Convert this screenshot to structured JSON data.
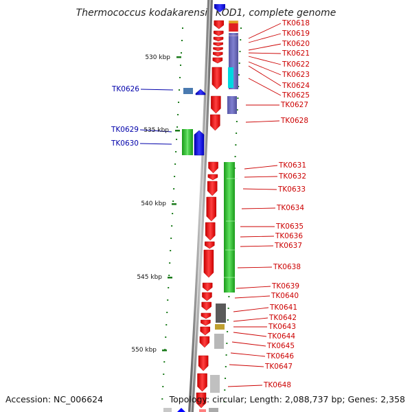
{
  "title": "Thermococcus kodakarensis KOD1, complete genome",
  "footer": {
    "accession": "Accession: NC_006624",
    "summary": "Topology: circular; Length: 2,088,737 bp; Genes: 2,358"
  },
  "colors": {
    "forward_gene": "#ff0000",
    "reverse_gene": "#0000ff",
    "forward_label": "#cc0000",
    "reverse_label": "#0000aa",
    "backbone": "#888888",
    "tick": "#1a7a1a"
  },
  "scale_labels": [
    "530 kbp",
    "535 kbp",
    "540 kbp",
    "545 kbp",
    "550 kbp"
  ],
  "forward_genes": [
    {
      "label": "TK0618"
    },
    {
      "label": "TK0619"
    },
    {
      "label": "TK0620"
    },
    {
      "label": "TK0621"
    },
    {
      "label": "TK0622"
    },
    {
      "label": "TK0623"
    },
    {
      "label": "TK0624"
    },
    {
      "label": "TK0625"
    },
    {
      "label": "TK0627"
    },
    {
      "label": "TK0628"
    },
    {
      "label": "TK0631"
    },
    {
      "label": "TK0632"
    },
    {
      "label": "TK0633"
    },
    {
      "label": "TK0634"
    },
    {
      "label": "TK0635"
    },
    {
      "label": "TK0636"
    },
    {
      "label": "TK0637"
    },
    {
      "label": "TK0638"
    },
    {
      "label": "TK0639"
    },
    {
      "label": "TK0640"
    },
    {
      "label": "TK0641"
    },
    {
      "label": "TK0642"
    },
    {
      "label": "TK0643"
    },
    {
      "label": "TK0644"
    },
    {
      "label": "TK0645"
    },
    {
      "label": "TK0646"
    },
    {
      "label": "TK0647"
    },
    {
      "label": "TK0648"
    }
  ],
  "reverse_genes": [
    {
      "label": "TK0626"
    },
    {
      "label": "TK0629"
    },
    {
      "label": "TK0630"
    }
  ]
}
